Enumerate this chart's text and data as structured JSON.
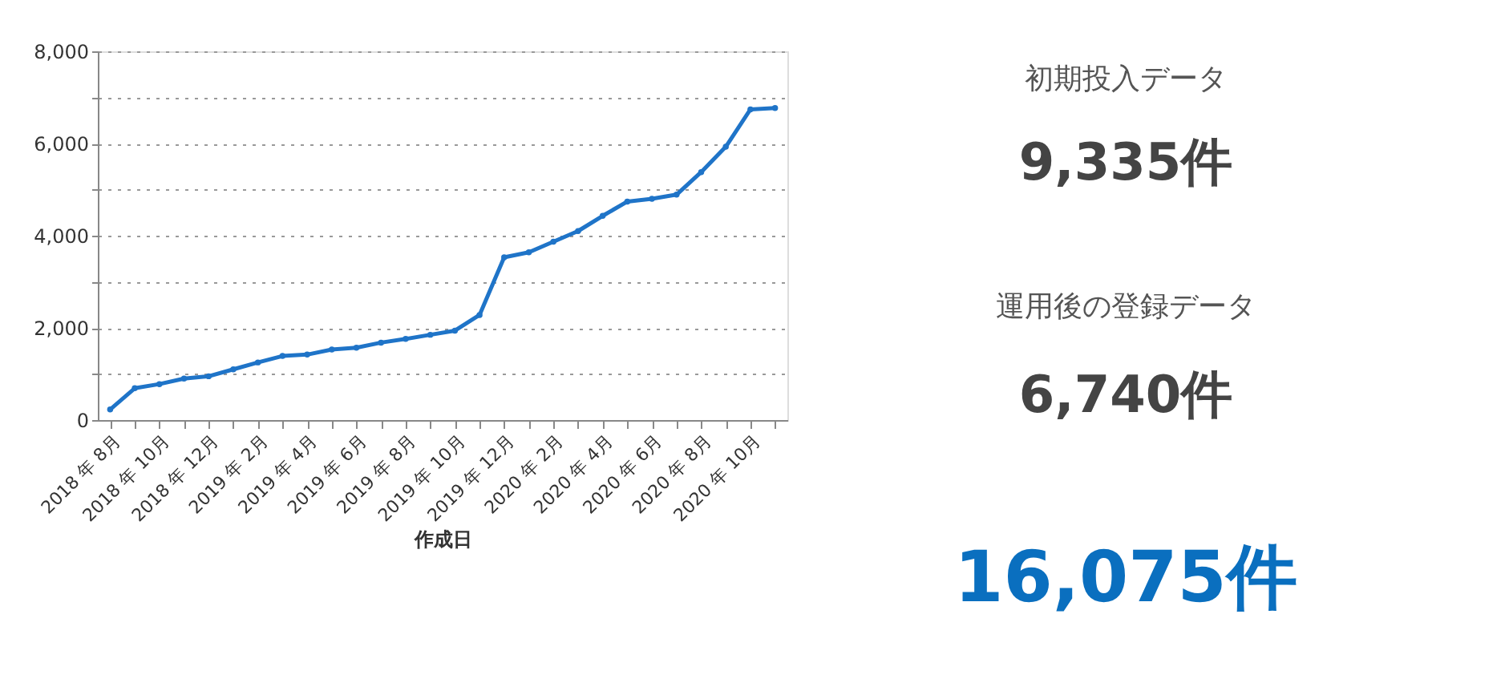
{
  "chart_data": [
    {
      "type": "line",
      "xlabel": "作成日",
      "categories": [
        "2018 年 8月",
        null,
        "2018 年 10月",
        null,
        "2018 年 12月",
        null,
        "2019 年 2月",
        null,
        "2019 年 4月",
        null,
        "2019 年 6月",
        null,
        "2019 年 8月",
        null,
        "2019 年 10月",
        null,
        "2019 年 12月",
        null,
        "2020 年 2月",
        null,
        "2020 年 4月",
        null,
        "2020 年 6月",
        null,
        "2020 年 8月",
        null,
        "2020 年 10月",
        null
      ],
      "series": [
        {
          "color": "#1f74c8",
          "values": [
            230,
            690,
            780,
            900,
            950,
            1100,
            1250,
            1390,
            1420,
            1530,
            1570,
            1680,
            1760,
            1850,
            1940,
            2280,
            3530,
            3640,
            3870,
            4100,
            4430,
            4740,
            4800,
            4890,
            5380,
            5930,
            6740,
            6770
          ]
        }
      ],
      "ylim": [
        0,
        8000
      ],
      "yticks": [
        0,
        {
          "value": 1000,
          "label": null
        },
        {
          "value": 2000,
          "label": "2,000"
        },
        {
          "value": 3000,
          "label": null
        },
        {
          "value": 4000,
          "label": "4,000"
        },
        {
          "value": 5000,
          "label": null
        },
        {
          "value": 6000,
          "label": "6,000"
        },
        {
          "value": 7000,
          "label": null
        },
        {
          "value": 8000,
          "label": "8,000"
        }
      ],
      "grid": "y",
      "marker": "circle",
      "line_style": "solid"
    },
    {
      "type": "other",
      "annotations": [
        "初期投入データ",
        "9,335件",
        "運用後の登録データ",
        "6,740件",
        "16,075件"
      ]
    }
  ]
}
